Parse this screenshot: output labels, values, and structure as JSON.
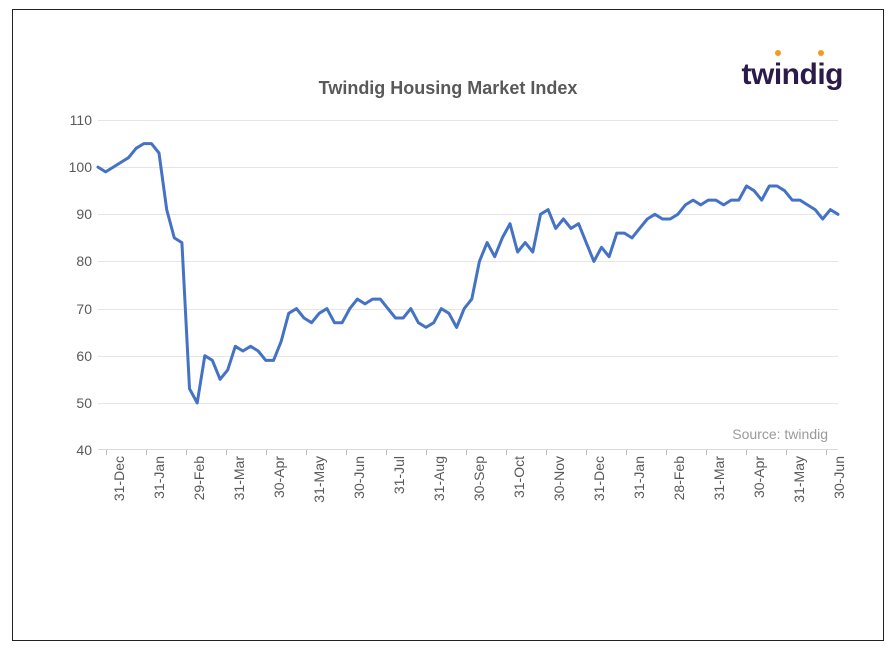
{
  "chart": {
    "type": "line",
    "title": "Twindig Housing Market Index",
    "title_fontsize": 18,
    "title_color": "#595959",
    "source": "Source: twindig",
    "background_color": "#ffffff",
    "grid_color": "#e5e5e5",
    "line_color": "#4472c4",
    "line_width": 3,
    "ylim": [
      40,
      110
    ],
    "ytick_step": 10,
    "yticks": [
      40,
      50,
      60,
      70,
      80,
      90,
      100,
      110
    ],
    "xlabels": [
      "31-Dec",
      "31-Jan",
      "29-Feb",
      "31-Mar",
      "30-Apr",
      "31-May",
      "30-Jun",
      "31-Jul",
      "31-Aug",
      "30-Sep",
      "31-Oct",
      "30-Nov",
      "31-Dec",
      "31-Jan",
      "28-Feb",
      "31-Mar",
      "30-Apr",
      "31-May",
      "30-Jun"
    ],
    "values": [
      100,
      99,
      100,
      101,
      102,
      104,
      105,
      105,
      103,
      91,
      85,
      84,
      53,
      50,
      60,
      59,
      55,
      57,
      62,
      61,
      62,
      61,
      59,
      59,
      63,
      69,
      70,
      68,
      67,
      69,
      70,
      67,
      67,
      70,
      72,
      71,
      72,
      72,
      70,
      68,
      68,
      70,
      67,
      66,
      67,
      70,
      69,
      66,
      70,
      72,
      80,
      84,
      81,
      85,
      88,
      82,
      84,
      82,
      90,
      91,
      87,
      89,
      87,
      88,
      84,
      80,
      83,
      81,
      86,
      86,
      85,
      87,
      89,
      90,
      89,
      89,
      90,
      92,
      93,
      92,
      93,
      93,
      92,
      93,
      93,
      96,
      95,
      93,
      96,
      96,
      95,
      93,
      93,
      92,
      91,
      89,
      91,
      90
    ],
    "label_fontsize": 14,
    "label_color": "#595959"
  },
  "logo": {
    "text": "twindig",
    "color": "#2b1b4a",
    "accent_color": "#f7991e"
  }
}
